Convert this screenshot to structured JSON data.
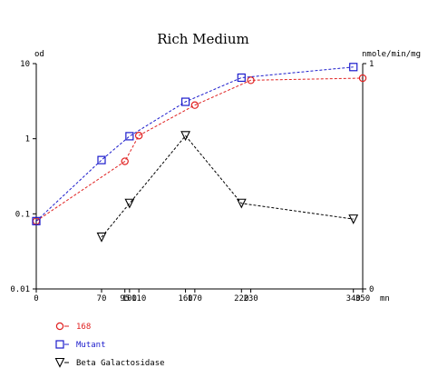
{
  "chart_data": {
    "type": "line",
    "title": "Rich Medium",
    "left_axis": {
      "label": "od",
      "scale": "log",
      "range": [
        0.01,
        10
      ],
      "ticks": [
        {
          "value": 0.01,
          "label": "0.01"
        },
        {
          "value": 0.1,
          "label": "0.1"
        },
        {
          "value": 1,
          "label": "1"
        },
        {
          "value": 10,
          "label": "10"
        }
      ]
    },
    "right_axis": {
      "label": "nmole/min/mg",
      "scale": "linear",
      "range": [
        0,
        1
      ],
      "ticks": [
        {
          "value": 0,
          "label": "0"
        },
        {
          "value": 1,
          "label": "1"
        }
      ]
    },
    "x_axis": {
      "label": "mn",
      "range": [
        0,
        350
      ],
      "ticks": [
        {
          "value": 0,
          "label": "0"
        },
        {
          "value": 70,
          "label": "70"
        },
        {
          "value": 95,
          "label": "95"
        },
        {
          "value": 100,
          "label": "100"
        },
        {
          "value": 110,
          "label": "110"
        },
        {
          "value": 160,
          "label": "160"
        },
        {
          "value": 170,
          "label": "170"
        },
        {
          "value": 220,
          "label": "220"
        },
        {
          "value": 230,
          "label": "230"
        },
        {
          "value": 340,
          "label": "340"
        },
        {
          "value": 350,
          "label": "350"
        }
      ]
    },
    "series": [
      {
        "name": "168",
        "color": "#e02020",
        "marker": "circle",
        "axis": "left",
        "x": [
          0,
          95,
          110,
          170,
          230,
          350
        ],
        "y": [
          0.08,
          0.5,
          1.1,
          2.8,
          6.0,
          6.4
        ]
      },
      {
        "name": "Mutant",
        "color": "#1c1ccc",
        "marker": "square",
        "axis": "left",
        "x": [
          0,
          70,
          100,
          160,
          220,
          340
        ],
        "y": [
          0.08,
          0.52,
          1.08,
          3.1,
          6.5,
          9.0
        ]
      },
      {
        "name": "Beta Galactosidase",
        "color": "#000000",
        "marker": "triangle-down",
        "axis": "right",
        "x": [
          70,
          100,
          160,
          220,
          340
        ],
        "y": [
          0.23,
          0.38,
          0.68,
          0.38,
          0.31
        ]
      }
    ],
    "legend_position": "bottom-left",
    "grid": false
  }
}
